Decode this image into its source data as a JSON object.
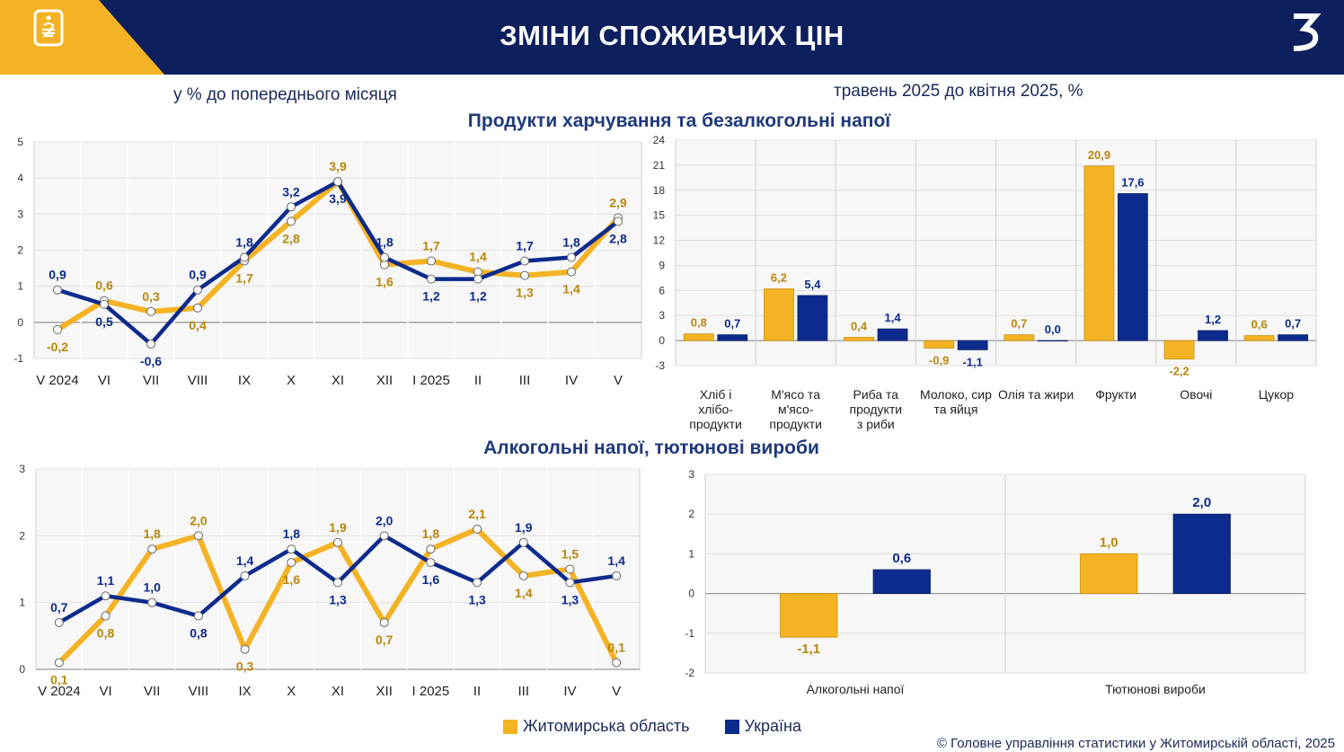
{
  "header": {
    "title": "ЗМІНИ СПОЖИВЧИХ ЦІН",
    "logo_icon": "hryvnia-tag-icon",
    "brand_icon": "ukrstat-logo-icon",
    "colors": {
      "bar": "#0d1f5c",
      "accent": "#f4b324"
    }
  },
  "subtitle_left": "у % до попереднього місяця",
  "subtitle_right": "травень 2025 до квітня 2025, %",
  "section_food": "Продукти харчування та безалкогольні напої",
  "section_alco": "Алкогольні напої, тютюнові вироби",
  "legend": [
    {
      "label": "Житомирська область",
      "color": "#f4b324"
    },
    {
      "label": "Україна",
      "color": "#0d2b8c"
    }
  ],
  "footer": "© Головне управління статистики у Житомирській області, 2025",
  "chart_data": [
    {
      "type": "line",
      "categories": [
        "V 2024",
        "VI",
        "VII",
        "VIII",
        "IX",
        "X",
        "XI",
        "XII",
        "I 2025",
        "II",
        "III",
        "IV",
        "V"
      ],
      "ylim": [
        -1,
        5
      ],
      "yticks": [
        -1,
        0,
        1,
        2,
        3,
        4,
        5
      ],
      "grid": true,
      "series": [
        {
          "name": "Житомирська область",
          "color": "#f4b324",
          "label_color": "#b8860b",
          "values": [
            -0.2,
            0.6,
            0.3,
            0.4,
            1.7,
            2.8,
            3.9,
            1.6,
            1.7,
            1.4,
            1.3,
            1.4,
            2.9
          ],
          "labels": [
            "-0,2",
            "0,6",
            "0,3",
            "0,4",
            "1,7",
            "2,8",
            "3,9",
            "1,6",
            "1,7",
            "1,4",
            "1,3",
            "1,4",
            "2,9"
          ]
        },
        {
          "name": "Україна",
          "color": "#0d2b8c",
          "label_color": "#0d2b8c",
          "values": [
            0.9,
            0.5,
            -0.6,
            0.9,
            1.8,
            3.2,
            3.9,
            1.8,
            1.2,
            1.2,
            1.7,
            1.8,
            2.8
          ],
          "labels": [
            "0,9",
            "0,5",
            "-0,6",
            "0,9",
            "1,8",
            "3,2",
            "3,9",
            "1,8",
            "1,2",
            "1,2",
            "1,7",
            "1,8",
            "2,8"
          ]
        }
      ]
    },
    {
      "type": "bar",
      "categories": [
        "Хліб і хлібо-продукти",
        "М'ясо та м'ясо-продукти",
        "Риба та продукти з риби",
        "Молоко, сир та яйця",
        "Олія та жири",
        "Фрукти",
        "Овочі",
        "Цукор"
      ],
      "category_lines": [
        [
          "Хліб і",
          "хлібо-",
          "продукти"
        ],
        [
          "М'ясо та",
          "м'ясо-",
          "продукти"
        ],
        [
          "Риба та",
          "продукти",
          "з риби"
        ],
        [
          "Молоко, сир",
          "та яйця"
        ],
        [
          "Олія та жири"
        ],
        [
          "Фрукти"
        ],
        [
          "Овочі"
        ],
        [
          "Цукор"
        ]
      ],
      "ylim": [
        -3,
        24
      ],
      "yticks": [
        -3,
        0,
        3,
        6,
        9,
        12,
        15,
        18,
        21,
        24
      ],
      "grid": true,
      "series": [
        {
          "name": "Житомирська область",
          "color": "#f4b324",
          "label_color": "#b8860b",
          "values": [
            0.8,
            6.2,
            0.4,
            -0.9,
            0.7,
            20.9,
            -2.2,
            0.6
          ],
          "labels": [
            "0,8",
            "6,2",
            "0,4",
            "-0,9",
            "0,7",
            "20,9",
            "-2,2",
            "0,6"
          ]
        },
        {
          "name": "Україна",
          "color": "#0d2b8c",
          "label_color": "#0d2b8c",
          "values": [
            0.7,
            5.4,
            1.4,
            -1.1,
            0.0,
            17.6,
            1.2,
            0.7
          ],
          "labels": [
            "0,7",
            "5,4",
            "1,4",
            "-1,1",
            "0,0",
            "17,6",
            "1,2",
            "0,7"
          ]
        }
      ]
    },
    {
      "type": "line",
      "categories": [
        "V 2024",
        "VI",
        "VII",
        "VIII",
        "IX",
        "X",
        "XI",
        "XII",
        "I 2025",
        "II",
        "III",
        "IV",
        "V"
      ],
      "ylim": [
        0,
        3
      ],
      "yticks": [
        0,
        1,
        2,
        3
      ],
      "grid": true,
      "series": [
        {
          "name": "Житомирська область",
          "color": "#f4b324",
          "label_color": "#b8860b",
          "values": [
            0.1,
            0.8,
            1.8,
            2.0,
            0.3,
            1.6,
            1.9,
            0.7,
            1.8,
            2.1,
            1.4,
            1.5,
            0.1
          ],
          "labels": [
            "0,1",
            "0,8",
            "1,8",
            "2,0",
            "0,3",
            "1,6",
            "1,9",
            "0,7",
            "1,8",
            "2,1",
            "1,4",
            "1,5",
            "0,1"
          ]
        },
        {
          "name": "Україна",
          "color": "#0d2b8c",
          "label_color": "#0d2b8c",
          "values": [
            0.7,
            1.1,
            1.0,
            0.8,
            1.4,
            1.8,
            1.3,
            2.0,
            1.6,
            1.3,
            1.9,
            1.3,
            1.4
          ],
          "labels": [
            "0,7",
            "1,1",
            "1,0",
            "0,8",
            "1,4",
            "1,8",
            "1,3",
            "2,0",
            "1,6",
            "1,3",
            "1,9",
            "1,3",
            "1,4"
          ]
        }
      ]
    },
    {
      "type": "bar",
      "categories": [
        "Алкогольні напої",
        "Тютюнові вироби"
      ],
      "category_lines": [
        [
          "Алкогольні напої"
        ],
        [
          "Тютюнові вироби"
        ]
      ],
      "ylim": [
        -2,
        3
      ],
      "yticks": [
        -2,
        -1,
        0,
        1,
        2,
        3
      ],
      "grid": true,
      "series": [
        {
          "name": "Житомирська область",
          "color": "#f4b324",
          "label_color": "#b8860b",
          "values": [
            -1.1,
            1.0
          ],
          "labels": [
            "-1,1",
            "1,0"
          ]
        },
        {
          "name": "Україна",
          "color": "#0d2b8c",
          "label_color": "#0d2b8c",
          "values": [
            0.6,
            2.0
          ],
          "labels": [
            "0,6",
            "2,0"
          ]
        }
      ]
    }
  ]
}
